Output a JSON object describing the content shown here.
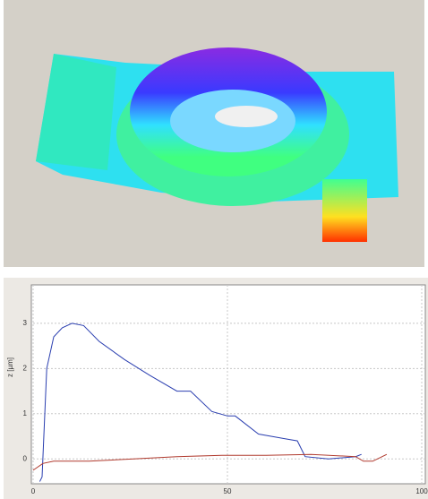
{
  "chart_data": {
    "type": "line",
    "y_label": "z [µm]",
    "xlim": [
      0,
      100
    ],
    "xticks": [
      0,
      50,
      100
    ],
    "ylim": [
      -0.55,
      3.85
    ],
    "yticks": [
      0,
      1,
      2,
      3
    ],
    "grid": true,
    "series": [
      {
        "color": "#2b3fb0",
        "x": [
          1.7,
          2.3,
          3.5,
          5.3,
          7.5,
          10,
          13,
          17,
          23.5,
          30,
          37,
          40.5,
          46,
          50,
          52,
          58,
          64.5,
          68,
          70,
          76,
          83,
          84.5
        ],
        "values": [
          -0.5,
          -0.4,
          2.0,
          2.7,
          2.9,
          3.0,
          2.95,
          2.6,
          2.2,
          1.85,
          1.5,
          1.5,
          1.05,
          0.95,
          0.95,
          0.55,
          0.45,
          0.4,
          0.05,
          0.0,
          0.05,
          0.1
        ]
      },
      {
        "color": "#b03a2e",
        "x": [
          0,
          2.5,
          5.3,
          14.4,
          25.8,
          37,
          48.6,
          60,
          71.5,
          83,
          85,
          87.4,
          91
        ],
        "values": [
          -0.25,
          -0.1,
          -0.05,
          -0.05,
          0.0,
          0.05,
          0.08,
          0.08,
          0.1,
          0.05,
          -0.05,
          -0.05,
          0.1
        ]
      }
    ]
  }
}
